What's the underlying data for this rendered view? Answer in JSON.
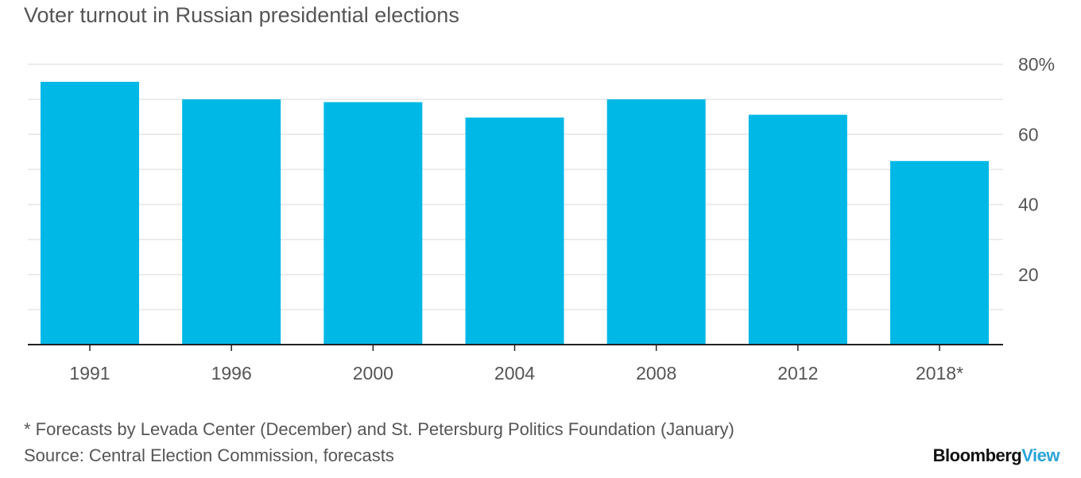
{
  "chart_data": {
    "type": "bar",
    "title": "Voter turnout in Russian presidential elections",
    "categories": [
      "1991",
      "1996",
      "2000",
      "2004",
      "2008",
      "2012",
      "2018*"
    ],
    "values": [
      75.0,
      70.0,
      69.2,
      64.8,
      70.0,
      65.6,
      52.4
    ],
    "y_ticks": [
      20,
      40,
      60,
      80
    ],
    "y_tick_labels": [
      "20",
      "40",
      "60",
      "80%"
    ],
    "ylim": [
      0,
      80
    ],
    "xlabel": "",
    "ylabel": "",
    "y_axis_side": "right",
    "grid": true,
    "bar_color": "#00b8e6",
    "grid_color": "#e6e6e6",
    "axis_color": "#222222"
  },
  "footnote": "* Forecasts by Levada Center (December) and St. Petersburg Politics Foundation (January)",
  "source": "Source: Central Election Commission, forecasts",
  "brand": {
    "part1": "Bloomberg",
    "part2": "View",
    "color_part2": "#2aa3d8"
  }
}
